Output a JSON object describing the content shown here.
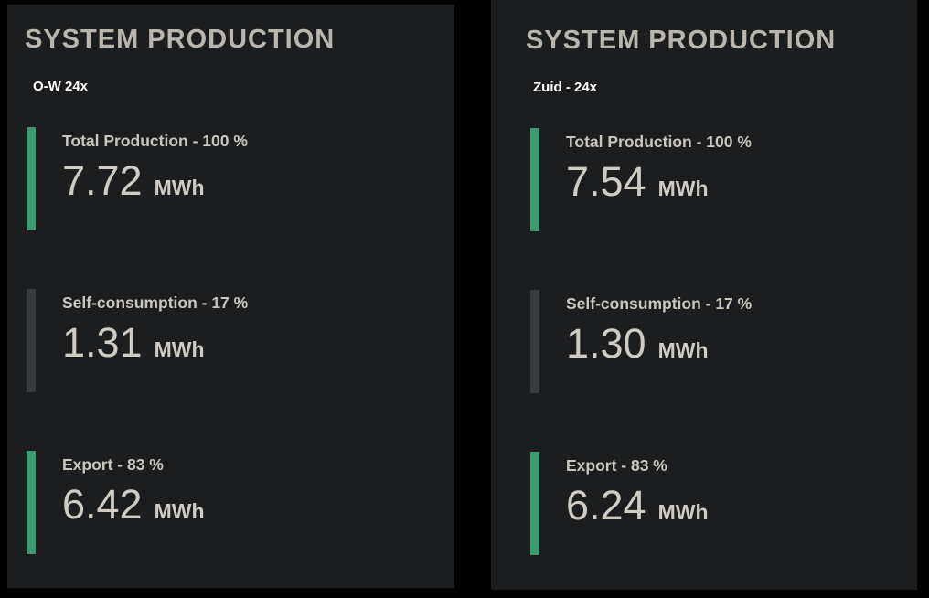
{
  "colors": {
    "background": "#000000",
    "panel_background": "#1b1d1f",
    "accent_green": "#3d9b71",
    "accent_gray": "#3a3b3e",
    "title_text": "#bab6ae",
    "subtitle_text": "#ffffff",
    "label_text": "#cbc7bf",
    "value_text": "#d0ccc4"
  },
  "panels": [
    {
      "title": "SYSTEM PRODUCTION",
      "subtitle": "O-W 24x",
      "metrics": [
        {
          "label": "Total Production - 100 %",
          "value": "7.72",
          "unit": "MWh",
          "color": "green"
        },
        {
          "label": "Self-consumption - 17 %",
          "value": "1.31",
          "unit": "MWh",
          "color": "gray"
        },
        {
          "label": "Export - 83 %",
          "value": "6.42",
          "unit": "MWh",
          "color": "green"
        }
      ]
    },
    {
      "title": "SYSTEM PRODUCTION",
      "subtitle": "Zuid - 24x",
      "metrics": [
        {
          "label": "Total Production - 100 %",
          "value": "7.54",
          "unit": "MWh",
          "color": "green"
        },
        {
          "label": "Self-consumption - 17 %",
          "value": "1.30",
          "unit": "MWh",
          "color": "gray"
        },
        {
          "label": "Export - 83 %",
          "value": "6.24",
          "unit": "MWh",
          "color": "green"
        }
      ]
    }
  ],
  "chart_data": [
    {
      "type": "table",
      "title": "SYSTEM PRODUCTION",
      "subtitle": "O-W 24x",
      "categories": [
        "Total Production",
        "Self-consumption",
        "Export"
      ],
      "values": [
        7.72,
        1.31,
        6.42
      ],
      "percentages": [
        100,
        17,
        83
      ],
      "unit": "MWh"
    },
    {
      "type": "table",
      "title": "SYSTEM PRODUCTION",
      "subtitle": "Zuid - 24x",
      "categories": [
        "Total Production",
        "Self-consumption",
        "Export"
      ],
      "values": [
        7.54,
        1.3,
        6.24
      ],
      "percentages": [
        100,
        17,
        83
      ],
      "unit": "MWh"
    }
  ]
}
